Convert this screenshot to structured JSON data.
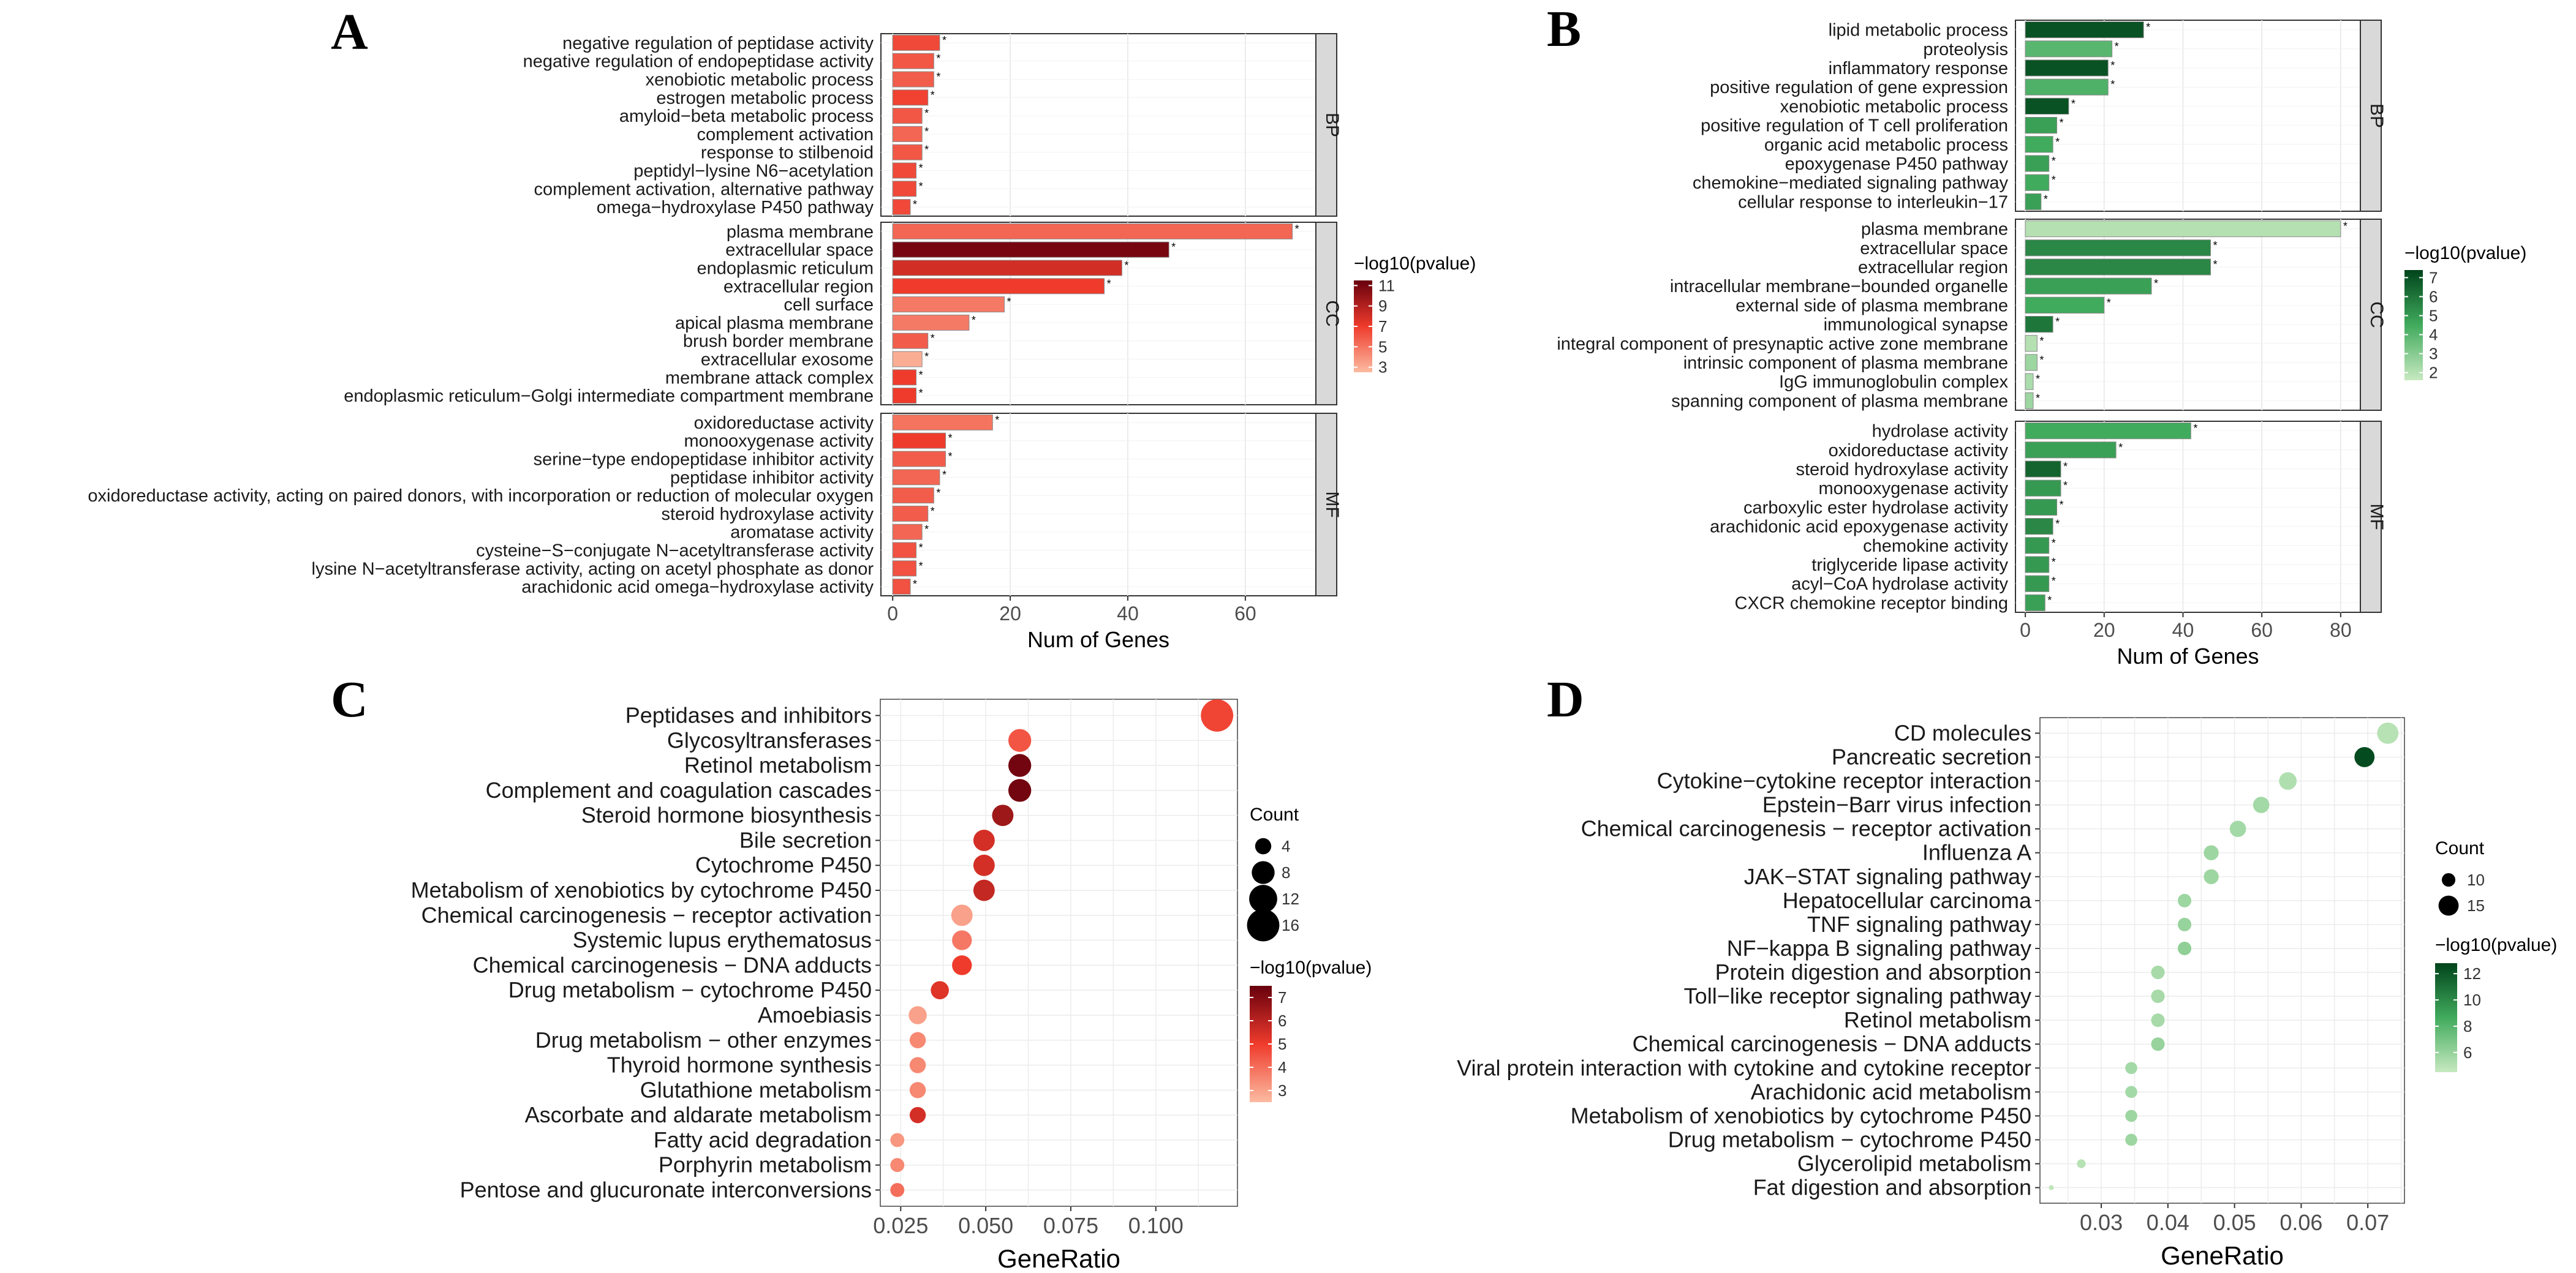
{
  "chart_data": [
    {
      "panel": "A",
      "type": "bar",
      "orientation": "horizontal",
      "xlabel": "Num of Genes",
      "xticks": [
        0,
        20,
        40,
        60
      ],
      "xlim": [
        -2,
        72
      ],
      "legend": {
        "title": "−log10(pvalue)",
        "labels": [
          "3",
          "5",
          "7",
          "9",
          "11"
        ],
        "range": [
          2.5,
          11.5
        ]
      },
      "colors": {
        "low": "#fcbba1",
        "mid": "#ef3b2c",
        "high": "#67000d"
      },
      "facets": [
        {
          "label": "BP",
          "items": [
            {
              "term": "negative regulation of peptidase activity",
              "count": 8,
              "logp": 6.5
            },
            {
              "term": "negative regulation of endopeptidase activity",
              "count": 7,
              "logp": 6.0
            },
            {
              "term": "xenobiotic metabolic process",
              "count": 7,
              "logp": 5.8
            },
            {
              "term": "estrogen metabolic process",
              "count": 6,
              "logp": 6.8
            },
            {
              "term": "amyloid−beta metabolic process",
              "count": 5,
              "logp": 6.0
            },
            {
              "term": "complement activation",
              "count": 5,
              "logp": 5.5
            },
            {
              "term": "response to stilbenoid",
              "count": 5,
              "logp": 6.0
            },
            {
              "term": "peptidyl−lysine N6−acetylation",
              "count": 4,
              "logp": 6.5
            },
            {
              "term": "complement activation, alternative pathway",
              "count": 4,
              "logp": 6.5
            },
            {
              "term": "omega−hydroxylase P450 pathway",
              "count": 3,
              "logp": 6.5
            }
          ]
        },
        {
          "label": "CC",
          "items": [
            {
              "term": "plasma membrane",
              "count": 68,
              "logp": 5.5
            },
            {
              "term": "extracellular space",
              "count": 47,
              "logp": 11.0
            },
            {
              "term": "endoplasmic reticulum",
              "count": 39,
              "logp": 8.0
            },
            {
              "term": "extracellular region",
              "count": 36,
              "logp": 7.0
            },
            {
              "term": "cell surface",
              "count": 19,
              "logp": 4.8
            },
            {
              "term": "apical plasma membrane",
              "count": 13,
              "logp": 4.8
            },
            {
              "term": "brush border membrane",
              "count": 6,
              "logp": 5.8
            },
            {
              "term": "extracellular exosome",
              "count": 5,
              "logp": 3.0
            },
            {
              "term": "membrane attack complex",
              "count": 4,
              "logp": 7.0
            },
            {
              "term": "endoplasmic reticulum−Golgi intermediate compartment membrane",
              "count": 4,
              "logp": 7.0
            }
          ]
        },
        {
          "label": "MF",
          "items": [
            {
              "term": "oxidoreductase activity",
              "count": 17,
              "logp": 5.0
            },
            {
              "term": "monooxygenase activity",
              "count": 9,
              "logp": 7.0
            },
            {
              "term": "serine−type endopeptidase inhibitor activity",
              "count": 9,
              "logp": 5.8
            },
            {
              "term": "peptidase inhibitor activity",
              "count": 8,
              "logp": 5.5
            },
            {
              "term": "oxidoreductase activity, acting on paired donors, with incorporation or reduction of molecular oxygen",
              "count": 7,
              "logp": 5.8
            },
            {
              "term": "steroid hydroxylase activity",
              "count": 6,
              "logp": 5.8
            },
            {
              "term": "aromatase activity",
              "count": 5,
              "logp": 5.5
            },
            {
              "term": "cysteine−S−conjugate N−acetyltransferase activity",
              "count": 4,
              "logp": 6.2
            },
            {
              "term": "lysine N−acetyltransferase activity, acting on acetyl phosphate as donor",
              "count": 4,
              "logp": 6.2
            },
            {
              "term": "arachidonic acid omega−hydroxylase activity",
              "count": 3,
              "logp": 6.2
            }
          ]
        }
      ]
    },
    {
      "panel": "B",
      "type": "bar",
      "orientation": "horizontal",
      "xlabel": "Num of Genes",
      "xticks": [
        0,
        20,
        40,
        60,
        80
      ],
      "xlim": [
        -2.5,
        85
      ],
      "legend": {
        "title": "−log10(pvalue)",
        "labels": [
          "2",
          "3",
          "4",
          "5",
          "6",
          "7"
        ],
        "range": [
          1.6,
          7.4
        ]
      },
      "colors": {
        "low": "#c7e9c0",
        "mid": "#41ab5d",
        "high": "#00441b"
      },
      "facets": [
        {
          "label": "BP",
          "items": [
            {
              "term": "lipid metabolic process",
              "count": 30,
              "logp": 7.0
            },
            {
              "term": "proteolysis",
              "count": 22,
              "logp": 4.0
            },
            {
              "term": "inflammatory response",
              "count": 21,
              "logp": 7.0
            },
            {
              "term": "positive regulation of gene expression",
              "count": 21,
              "logp": 4.2
            },
            {
              "term": "xenobiotic metabolic process",
              "count": 11,
              "logp": 7.0
            },
            {
              "term": "positive regulation of T cell proliferation",
              "count": 8,
              "logp": 4.8
            },
            {
              "term": "organic acid metabolic process",
              "count": 7,
              "logp": 4.5
            },
            {
              "term": "epoxygenase P450 pathway",
              "count": 6,
              "logp": 4.8
            },
            {
              "term": "chemokine−mediated signaling pathway",
              "count": 6,
              "logp": 4.5
            },
            {
              "term": "cellular response to interleukin−17",
              "count": 4,
              "logp": 4.8
            }
          ]
        },
        {
          "label": "CC",
          "items": [
            {
              "term": "plasma membrane",
              "count": 80,
              "logp": 2.0
            },
            {
              "term": "extracellular space",
              "count": 47,
              "logp": 5.5
            },
            {
              "term": "extracellular region",
              "count": 47,
              "logp": 5.5
            },
            {
              "term": "intracellular membrane−bounded organelle",
              "count": 32,
              "logp": 4.8
            },
            {
              "term": "external side of plasma membrane",
              "count": 20,
              "logp": 4.5
            },
            {
              "term": "immunological synapse",
              "count": 7,
              "logp": 6.0
            },
            {
              "term": "integral component of presynaptic active zone membrane",
              "count": 3,
              "logp": 2.0
            },
            {
              "term": "intrinsic component of plasma membrane",
              "count": 3,
              "logp": 2.5
            },
            {
              "term": "IgG immunoglobulin complex",
              "count": 2,
              "logp": 2.2
            },
            {
              "term": "spanning component of plasma membrane",
              "count": 2,
              "logp": 2.5
            }
          ]
        },
        {
          "label": "MF",
          "items": [
            {
              "term": "hydrolase activity",
              "count": 42,
              "logp": 4.5
            },
            {
              "term": "oxidoreductase activity",
              "count": 23,
              "logp": 4.8
            },
            {
              "term": "steroid hydroxylase activity",
              "count": 9,
              "logp": 6.5
            },
            {
              "term": "monooxygenase activity",
              "count": 9,
              "logp": 5.0
            },
            {
              "term": "carboxylic ester hydrolase activity",
              "count": 8,
              "logp": 5.0
            },
            {
              "term": "arachidonic acid epoxygenase activity",
              "count": 7,
              "logp": 5.5
            },
            {
              "term": "chemokine activity",
              "count": 6,
              "logp": 5.0
            },
            {
              "term": "triglyceride lipase activity",
              "count": 6,
              "logp": 5.0
            },
            {
              "term": "acyl−CoA hydrolase activity",
              "count": 6,
              "logp": 5.0
            },
            {
              "term": "CXCR chemokine receptor binding",
              "count": 5,
              "logp": 4.8
            }
          ]
        }
      ]
    },
    {
      "panel": "C",
      "type": "scatter",
      "subtype": "dotplot",
      "xlabel": "GeneRatio",
      "xticks": [
        0.025,
        0.05,
        0.075,
        0.1
      ],
      "xticklabels": [
        "0.025",
        "0.050",
        "0.075",
        "0.100"
      ],
      "xlim": [
        0.019,
        0.124
      ],
      "count_legend": {
        "title": "Count",
        "values": [
          4,
          8,
          12,
          16
        ]
      },
      "color_legend": {
        "title": "−log10(pvalue)",
        "labels": [
          "7",
          "6",
          "5",
          "4",
          "3"
        ],
        "range": [
          2.5,
          7.5
        ]
      },
      "colors": {
        "low": "#fcbba1",
        "mid": "#ef3b2c",
        "high": "#67000d"
      },
      "points": [
        {
          "term": "Peptidases and inhibitors",
          "x": 0.118,
          "count": 16,
          "logp": 4.8
        },
        {
          "term": "Glycosyltransferases",
          "x": 0.06,
          "count": 8,
          "logp": 4.5
        },
        {
          "term": "Retinol metabolism",
          "x": 0.06,
          "count": 8,
          "logp": 7.3
        },
        {
          "term": "Complement and coagulation cascades",
          "x": 0.06,
          "count": 8,
          "logp": 7.3
        },
        {
          "term": "Steroid hormone biosynthesis",
          "x": 0.055,
          "count": 7,
          "logp": 6.5
        },
        {
          "term": "Bile secretion",
          "x": 0.0495,
          "count": 7,
          "logp": 5.5
        },
        {
          "term": "Cytochrome P450",
          "x": 0.0495,
          "count": 7,
          "logp": 5.5
        },
        {
          "term": "Metabolism of xenobiotics by cytochrome P450",
          "x": 0.0495,
          "count": 7,
          "logp": 5.8
        },
        {
          "term": "Chemical carcinogenesis − receptor activation",
          "x": 0.043,
          "count": 7,
          "logp": 3.0
        },
        {
          "term": "Systemic lupus erythematosus",
          "x": 0.043,
          "count": 6,
          "logp": 3.8
        },
        {
          "term": "Chemical carcinogenesis − DNA adducts",
          "x": 0.043,
          "count": 6,
          "logp": 5.0
        },
        {
          "term": "Drug metabolism − cytochrome P450",
          "x": 0.0365,
          "count": 5,
          "logp": 5.3
        },
        {
          "term": "Amoebiasis",
          "x": 0.03,
          "count": 5,
          "logp": 3.0
        },
        {
          "term": "Drug metabolism − other enzymes",
          "x": 0.03,
          "count": 4,
          "logp": 3.5
        },
        {
          "term": "Thyroid hormone synthesis",
          "x": 0.03,
          "count": 4,
          "logp": 3.5
        },
        {
          "term": "Glutathione metabolism",
          "x": 0.03,
          "count": 4,
          "logp": 3.5
        },
        {
          "term": "Ascorbate and aldarate metabolism",
          "x": 0.03,
          "count": 4,
          "logp": 5.5
        },
        {
          "term": "Fatty acid degradation",
          "x": 0.024,
          "count": 3,
          "logp": 3.2
        },
        {
          "term": "Porphyrin metabolism",
          "x": 0.024,
          "count": 3,
          "logp": 3.5
        },
        {
          "term": "Pentose and glucuronate interconversions",
          "x": 0.024,
          "count": 3,
          "logp": 4.0
        }
      ]
    },
    {
      "panel": "D",
      "type": "scatter",
      "subtype": "dotplot",
      "xlabel": "GeneRatio",
      "xticks": [
        0.03,
        0.04,
        0.05,
        0.06,
        0.07
      ],
      "xticklabels": [
        "0.03",
        "0.04",
        "0.05",
        "0.06",
        "0.07"
      ],
      "xlim": [
        0.0208,
        0.0755
      ],
      "count_legend": {
        "title": "Count",
        "values": [
          10,
          15
        ]
      },
      "color_legend": {
        "title": "−log10(pvalue)",
        "labels": [
          "12",
          "10",
          "8",
          "6"
        ],
        "range": [
          4.5,
          12.8
        ]
      },
      "colors": {
        "low": "#c7e9c0",
        "mid": "#41ab5d",
        "high": "#00441b"
      },
      "points": [
        {
          "term": "CD molecules",
          "x": 0.073,
          "count": 16,
          "logp": 5.0
        },
        {
          "term": "Pancreatic secretion",
          "x": 0.0695,
          "count": 15,
          "logp": 12.5
        },
        {
          "term": "Cytokine−cytokine receptor interaction",
          "x": 0.058,
          "count": 13,
          "logp": 5.2
        },
        {
          "term": "Epstein−Barr virus infection",
          "x": 0.054,
          "count": 12,
          "logp": 5.6
        },
        {
          "term": "Chemical carcinogenesis − receptor activation",
          "x": 0.0505,
          "count": 12,
          "logp": 5.6
        },
        {
          "term": "Influenza A",
          "x": 0.0465,
          "count": 11,
          "logp": 5.8
        },
        {
          "term": "JAK−STAT signaling pathway",
          "x": 0.0465,
          "count": 11,
          "logp": 5.8
        },
        {
          "term": "Hepatocellular carcinoma",
          "x": 0.0425,
          "count": 10,
          "logp": 5.8
        },
        {
          "term": "TNF signaling pathway",
          "x": 0.0425,
          "count": 10,
          "logp": 6.0
        },
        {
          "term": "NF−kappa B signaling pathway",
          "x": 0.0425,
          "count": 10,
          "logp": 6.2
        },
        {
          "term": "Protein digestion and absorption",
          "x": 0.0385,
          "count": 10,
          "logp": 5.5
        },
        {
          "term": "Toll−like receptor signaling pathway",
          "x": 0.0385,
          "count": 10,
          "logp": 5.5
        },
        {
          "term": "Retinol metabolism",
          "x": 0.0385,
          "count": 10,
          "logp": 5.5
        },
        {
          "term": "Chemical carcinogenesis − DNA adducts",
          "x": 0.0385,
          "count": 10,
          "logp": 6.0
        },
        {
          "term": "Viral protein interaction with cytokine and cytokine receptor",
          "x": 0.0345,
          "count": 9,
          "logp": 5.6
        },
        {
          "term": "Arachidonic acid metabolism",
          "x": 0.0345,
          "count": 9,
          "logp": 5.6
        },
        {
          "term": "Metabolism of xenobiotics by cytochrome P450",
          "x": 0.0345,
          "count": 9,
          "logp": 5.8
        },
        {
          "term": "Drug metabolism − cytochrome P450",
          "x": 0.0345,
          "count": 9,
          "logp": 5.8
        },
        {
          "term": "Glycerolipid metabolism",
          "x": 0.027,
          "count": 7,
          "logp": 5.0
        },
        {
          "term": "Fat digestion and absorption",
          "x": 0.0225,
          "count": 5,
          "logp": 4.8
        }
      ]
    }
  ]
}
